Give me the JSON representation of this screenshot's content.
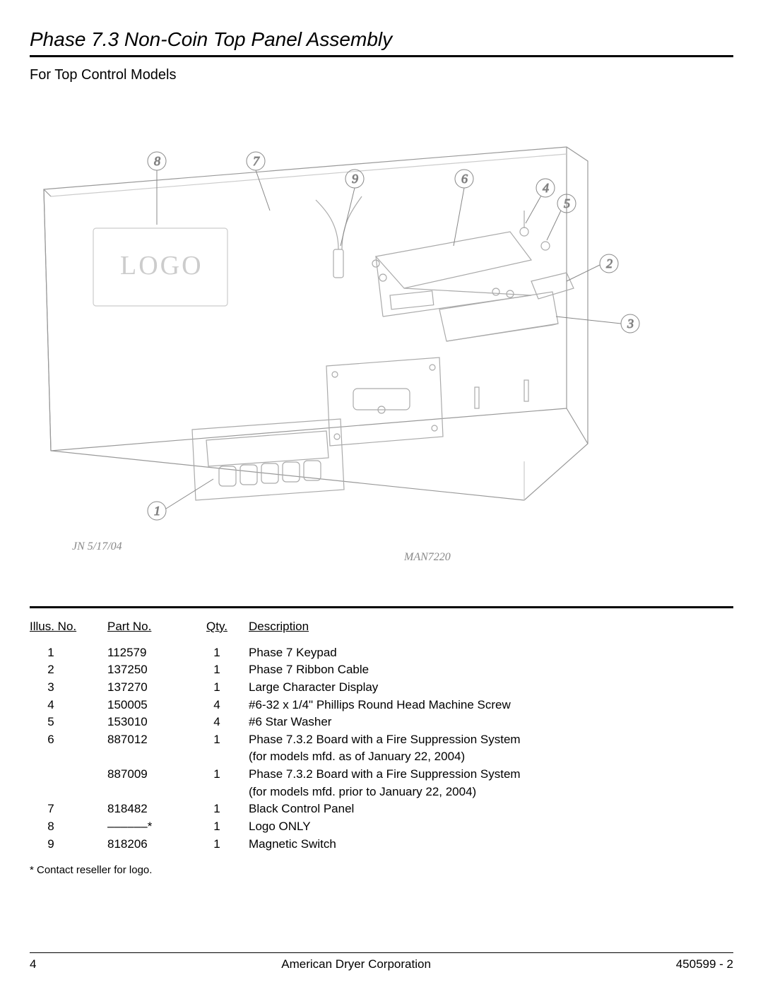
{
  "title": "Phase 7.3 Non-Coin Top Panel Assembly",
  "subtitle": "For Top Control Models",
  "diagram": {
    "logo_placeholder": "LOGO",
    "date_label": "JN 5/17/04",
    "drawing_no": "MAN7220",
    "callouts": [
      "1",
      "2",
      "3",
      "4",
      "5",
      "6",
      "7",
      "8",
      "9"
    ],
    "callout_stroke": "#888888",
    "line_stroke": "#000000",
    "light_stroke": "#bbbbbb"
  },
  "table": {
    "headers": {
      "illus": "Illus. No.",
      "part": "Part No.",
      "qty": "Qty.",
      "desc": "Description"
    },
    "rows": [
      {
        "illus": "1",
        "part": "112579",
        "qty": "1",
        "desc": "Phase 7 Keypad"
      },
      {
        "illus": "2",
        "part": "137250",
        "qty": "1",
        "desc": "Phase 7 Ribbon Cable"
      },
      {
        "illus": "3",
        "part": "137270",
        "qty": "1",
        "desc": "Large Character Display"
      },
      {
        "illus": "4",
        "part": "150005",
        "qty": "4",
        "desc": "#6-32 x 1/4\" Phillips Round Head Machine Screw"
      },
      {
        "illus": "5",
        "part": "153010",
        "qty": "4",
        "desc": "#6 Star Washer"
      },
      {
        "illus": "6",
        "part": "887012",
        "qty": "1",
        "desc": "Phase 7.3.2 Board with a Fire Suppression System"
      },
      {
        "illus": "",
        "part": "",
        "qty": "",
        "desc": "(for models mfd. as of January 22, 2004)"
      },
      {
        "illus": "",
        "part": "887009",
        "qty": "1",
        "desc": "Phase 7.3.2 Board with a Fire Suppression System"
      },
      {
        "illus": "",
        "part": "",
        "qty": "",
        "desc": "(for models mfd. prior to January 22, 2004)"
      },
      {
        "illus": "7",
        "part": "818482",
        "qty": "1",
        "desc": "Black Control Panel"
      },
      {
        "illus": "8",
        "part": "––––––*",
        "qty": "1",
        "desc": "Logo ONLY"
      },
      {
        "illus": "9",
        "part": "818206",
        "qty": "1",
        "desc": "Magnetic Switch"
      }
    ],
    "footnote": "*   Contact reseller for logo."
  },
  "footer": {
    "page": "4",
    "company": "American Dryer Corporation",
    "docno": "450599 - 2"
  }
}
